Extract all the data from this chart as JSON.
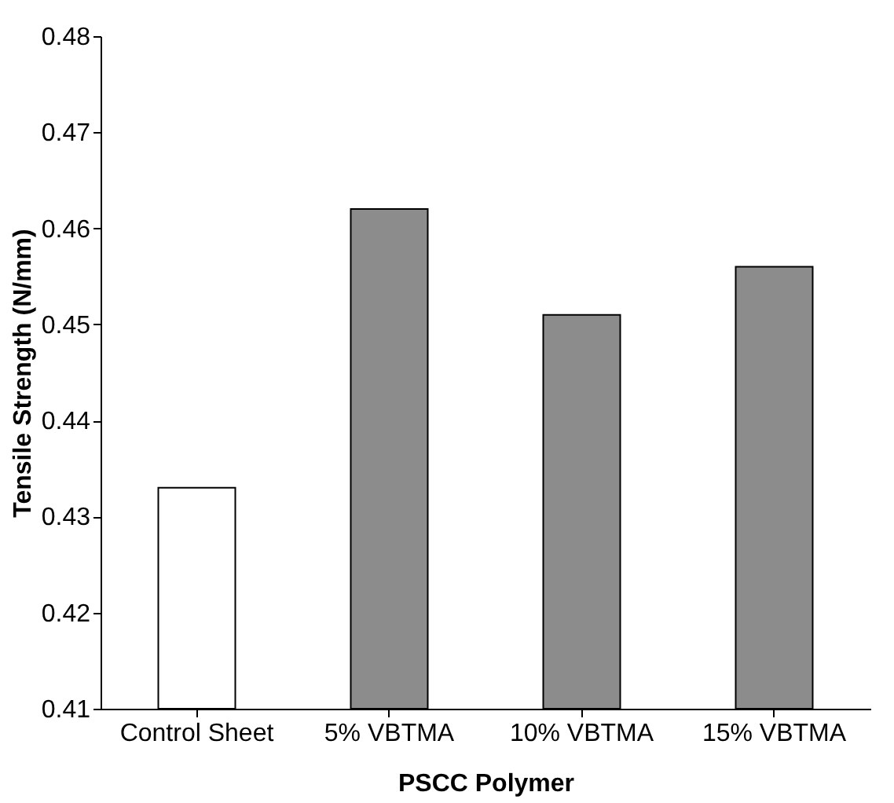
{
  "chart_data": {
    "type": "bar",
    "xlabel": "PSCC Polymer",
    "ylabel": "Tensile Strength (N/mm)",
    "categories": [
      "Control Sheet",
      "5%  VBTMA",
      "10% VBTMA",
      "15% VBTMA"
    ],
    "values": [
      0.433,
      0.462,
      0.451,
      0.456
    ],
    "colors": [
      "#ffffff",
      "#8c8c8c",
      "#8c8c8c",
      "#8c8c8c"
    ],
    "ylim": [
      0.41,
      0.48
    ],
    "yticks": [
      0.41,
      0.42,
      0.43,
      0.44,
      0.45,
      0.46,
      0.47,
      0.48
    ],
    "grid": false
  }
}
